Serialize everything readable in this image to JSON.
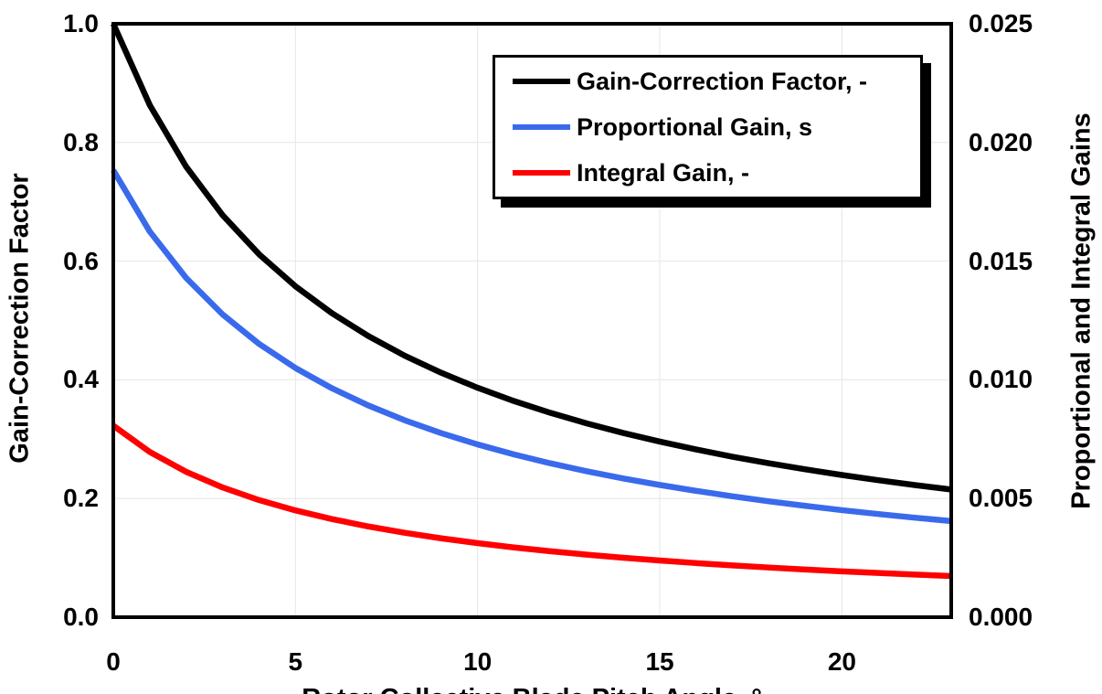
{
  "colors": {
    "background": "#FFFFFF",
    "frame": "#000000",
    "grid": "#E6E6E6",
    "series_black": "#000000",
    "series_blue": "#3A6AEC",
    "series_red": "#FF0000"
  },
  "chart_data": {
    "type": "line",
    "grid": true,
    "legend_position": "top-center",
    "xlabel": "Rotor Collective Blade Pitch Angle, °",
    "xlim": [
      0,
      23
    ],
    "x_ticks": [
      {
        "value": 0,
        "label": "0"
      },
      {
        "value": 5,
        "label": "5"
      },
      {
        "value": 10,
        "label": "10"
      },
      {
        "value": 15,
        "label": "15"
      },
      {
        "value": 20,
        "label": "20"
      }
    ],
    "left_axis": {
      "label": "Gain-Correction Factor",
      "lim": [
        0,
        1
      ],
      "ticks": [
        {
          "value": 1.0,
          "label": "1.0"
        },
        {
          "value": 0.8,
          "label": "0.8"
        },
        {
          "value": 0.6,
          "label": "0.6"
        },
        {
          "value": 0.4,
          "label": "0.4"
        },
        {
          "value": 0.2,
          "label": "0.2"
        },
        {
          "value": 0.0,
          "label": "0.0"
        }
      ]
    },
    "right_axis": {
      "label": "Proportional and Integral Gains",
      "lim": [
        0,
        0.025
      ],
      "ticks": [
        {
          "value": 0.025,
          "label": "0.025"
        },
        {
          "value": 0.02,
          "label": "0.020"
        },
        {
          "value": 0.015,
          "label": "0.015"
        },
        {
          "value": 0.01,
          "label": "0.010"
        },
        {
          "value": 0.005,
          "label": "0.005"
        },
        {
          "value": 0.0,
          "label": "0.000"
        }
      ]
    },
    "x": [
      0,
      1,
      2,
      3,
      4,
      5,
      6,
      7,
      8,
      9,
      10,
      11,
      12,
      13,
      14,
      15,
      16,
      17,
      18,
      19,
      20,
      21,
      22,
      23
    ],
    "series": [
      {
        "name": "Gain-Correction Factor, -",
        "axis": "left",
        "color": "#000000",
        "values": [
          1.0,
          0.8631,
          0.7591,
          0.6775,
          0.6117,
          0.5576,
          0.5123,
          0.4738,
          0.4406,
          0.4119,
          0.3866,
          0.3642,
          0.3443,
          0.3265,
          0.3104,
          0.2959,
          0.2826,
          0.2704,
          0.2593,
          0.2491,
          0.2396,
          0.2308,
          0.2227,
          0.2151
        ]
      },
      {
        "name": "Proportional Gain, s",
        "axis": "right",
        "color": "#3A6AEC",
        "values": [
          0.018827,
          0.016249,
          0.014291,
          0.012755,
          0.011516,
          0.010498,
          0.009645,
          0.00892,
          0.008295,
          0.007754,
          0.007278,
          0.006857,
          0.006482,
          0.006147,
          0.005843,
          0.005571,
          0.005321,
          0.005091,
          0.004881,
          0.004689,
          0.00451,
          0.004345,
          0.004192,
          0.00405
        ]
      },
      {
        "name": "Integral Gain, -",
        "axis": "right",
        "color": "#FF0000",
        "values": [
          0.008069,
          0.006964,
          0.006125,
          0.005467,
          0.004935,
          0.004499,
          0.004134,
          0.003823,
          0.003555,
          0.003323,
          0.003119,
          0.002938,
          0.002778,
          0.002634,
          0.002504,
          0.002387,
          0.00228,
          0.002182,
          0.002092,
          0.00201,
          0.001933,
          0.001862,
          0.001796,
          0.001735
        ]
      }
    ]
  }
}
